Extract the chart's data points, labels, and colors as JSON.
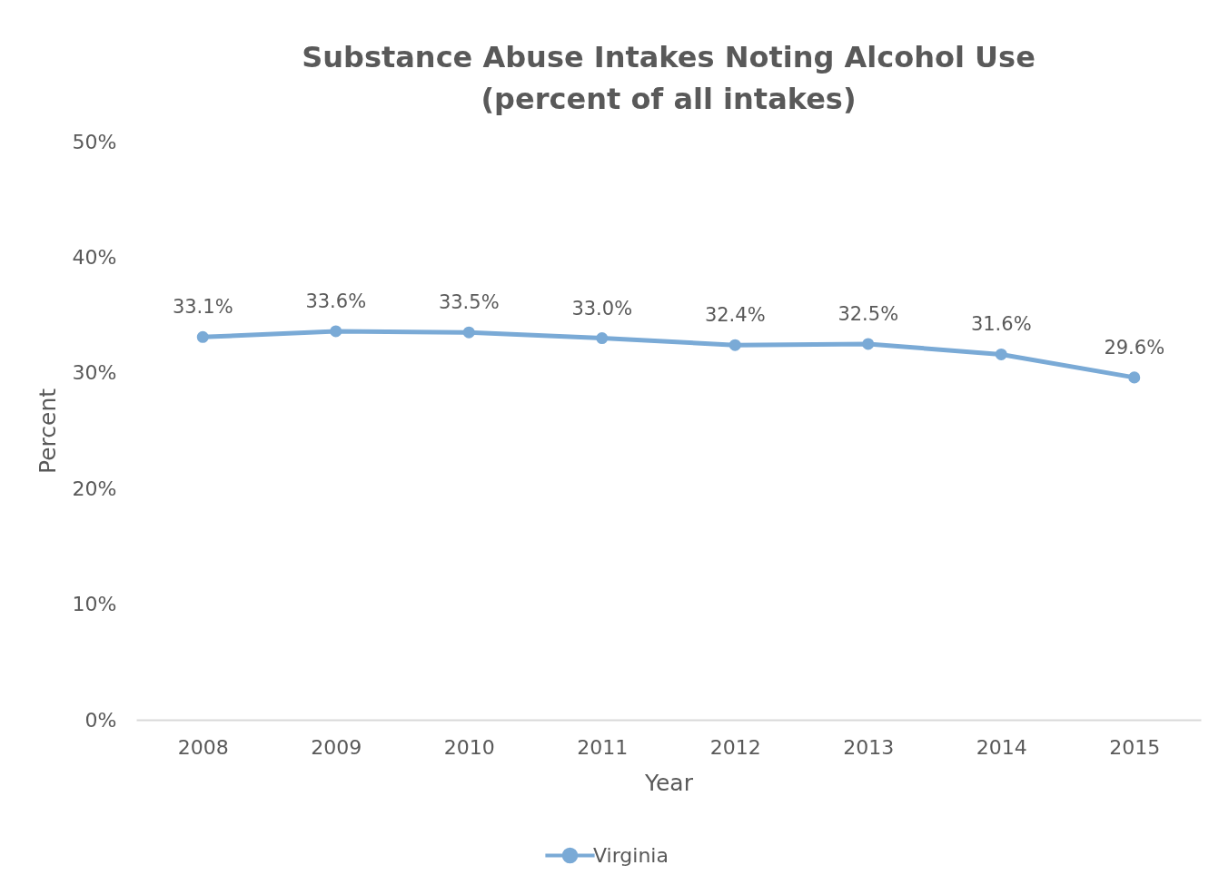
{
  "chart_data": {
    "type": "line",
    "title": "Substance Abuse Intakes Noting Alcohol Use\n(percent of all intakes)",
    "xlabel": "Year",
    "ylabel": "Percent",
    "categories": [
      "2008",
      "2009",
      "2010",
      "2011",
      "2012",
      "2013",
      "2014",
      "2015"
    ],
    "series": [
      {
        "name": "Virginia",
        "color": "#7aaad6",
        "values": [
          33.1,
          33.6,
          33.5,
          33.0,
          32.4,
          32.5,
          31.6,
          29.6
        ],
        "value_labels": [
          "33.1%",
          "33.6%",
          "33.5%",
          "33.0%",
          "32.4%",
          "32.5%",
          "31.6%",
          "29.6%"
        ]
      }
    ],
    "ylim": [
      0,
      50
    ],
    "yticks": [
      {
        "value": 0,
        "label": "0%"
      },
      {
        "value": 10,
        "label": "10%"
      },
      {
        "value": 20,
        "label": "20%"
      },
      {
        "value": 30,
        "label": "30%"
      },
      {
        "value": 40,
        "label": "40%"
      },
      {
        "value": 50,
        "label": "50%"
      }
    ],
    "legend": "bottom",
    "marker": "circle",
    "line_style": "solid"
  }
}
